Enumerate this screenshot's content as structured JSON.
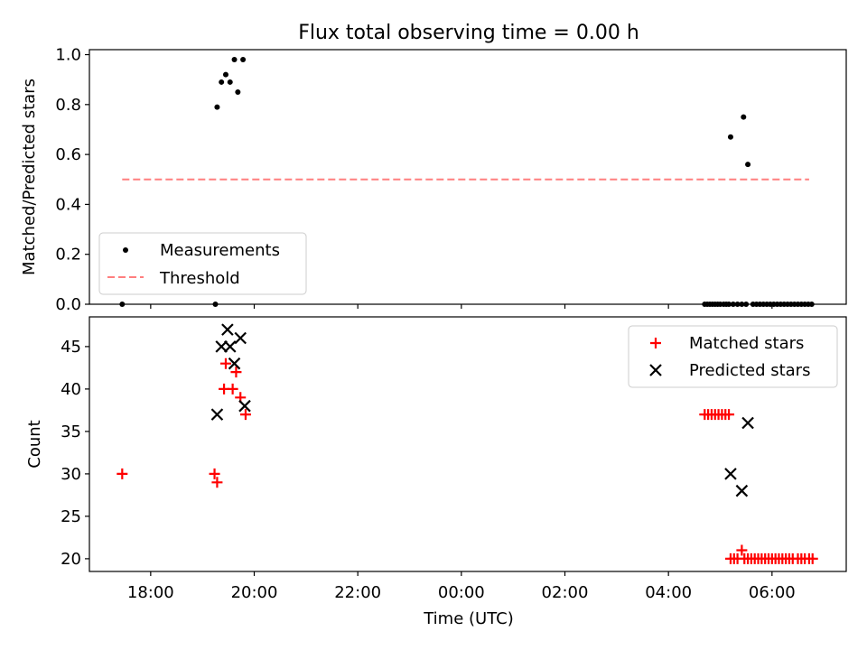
{
  "title": "Flux total observing time = 0.00 h",
  "colors": {
    "matched": "#ff0000",
    "predicted": "#000000",
    "threshold": "#ff7f7f",
    "measurements": "#000000"
  },
  "chart_data": [
    {
      "type": "scatter",
      "ylabel": "Matched/Predicted stars",
      "ylim": [
        0,
        1.02
      ],
      "yticks": [
        "0.0",
        "0.2",
        "0.4",
        "0.6",
        "0.8",
        "1.0"
      ],
      "yticks_values": [
        0.0,
        0.2,
        0.4,
        0.6,
        0.8,
        1.0
      ],
      "legend": {
        "placement": "lower-left",
        "entries": [
          "Measurements",
          "Threshold"
        ]
      },
      "threshold": {
        "name": "Threshold",
        "value": 0.5,
        "x_start": "17:27",
        "x_end": "06:43"
      },
      "series": [
        {
          "name": "Measurements",
          "points": [
            [
              "17:27",
              0.0
            ],
            [
              "19:15",
              0.0
            ],
            [
              "19:17",
              0.79
            ],
            [
              "19:22",
              0.89
            ],
            [
              "19:27",
              0.92
            ],
            [
              "19:32",
              0.89
            ],
            [
              "19:37",
              0.98
            ],
            [
              "19:41",
              0.85
            ],
            [
              "19:47",
              0.98
            ],
            [
              "04:42",
              0.0
            ],
            [
              "04:45",
              0.0
            ],
            [
              "04:48",
              0.0
            ],
            [
              "04:51",
              0.0
            ],
            [
              "04:54",
              0.0
            ],
            [
              "04:57",
              0.0
            ],
            [
              "05:00",
              0.0
            ],
            [
              "05:04",
              0.0
            ],
            [
              "05:07",
              0.0
            ],
            [
              "05:10",
              0.0
            ],
            [
              "05:12",
              0.67
            ],
            [
              "05:15",
              0.0
            ],
            [
              "05:20",
              0.0
            ],
            [
              "05:25",
              0.0
            ],
            [
              "05:27",
              0.75
            ],
            [
              "05:30",
              0.0
            ],
            [
              "05:32",
              0.56
            ],
            [
              "05:38",
              0.0
            ],
            [
              "05:42",
              0.0
            ],
            [
              "05:46",
              0.0
            ],
            [
              "05:50",
              0.0
            ],
            [
              "05:54",
              0.0
            ],
            [
              "05:58",
              0.0
            ],
            [
              "06:02",
              0.0
            ],
            [
              "06:06",
              0.0
            ],
            [
              "06:10",
              0.0
            ],
            [
              "06:14",
              0.0
            ],
            [
              "06:18",
              0.0
            ],
            [
              "06:22",
              0.0
            ],
            [
              "06:26",
              0.0
            ],
            [
              "06:30",
              0.0
            ],
            [
              "06:34",
              0.0
            ],
            [
              "06:38",
              0.0
            ],
            [
              "06:42",
              0.0
            ],
            [
              "06:46",
              0.0
            ]
          ]
        }
      ]
    },
    {
      "type": "scatter",
      "xlabel": "Time (UTC)",
      "ylabel": "Count",
      "ylim": [
        18.5,
        48.5
      ],
      "yticks": [
        "20",
        "25",
        "30",
        "35",
        "40",
        "45"
      ],
      "yticks_values": [
        20,
        25,
        30,
        35,
        40,
        45
      ],
      "xticks": [
        "18:00",
        "20:00",
        "22:00",
        "00:00",
        "02:00",
        "04:00",
        "06:00"
      ],
      "xlim": [
        "16:49",
        "07:26"
      ],
      "legend": {
        "placement": "upper-right",
        "entries": [
          "Matched stars",
          "Predicted stars"
        ]
      },
      "series": [
        {
          "name": "Matched stars",
          "points": [
            [
              "17:27",
              30
            ],
            [
              "19:14",
              30
            ],
            [
              "19:17",
              29
            ],
            [
              "19:25",
              40
            ],
            [
              "19:27",
              43
            ],
            [
              "19:35",
              40
            ],
            [
              "19:39",
              42
            ],
            [
              "19:44",
              39
            ],
            [
              "19:50",
              37
            ],
            [
              "04:42",
              37
            ],
            [
              "04:46",
              37
            ],
            [
              "04:50",
              37
            ],
            [
              "04:54",
              37
            ],
            [
              "04:58",
              37
            ],
            [
              "05:02",
              37
            ],
            [
              "05:06",
              37
            ],
            [
              "05:10",
              37
            ],
            [
              "05:12",
              20
            ],
            [
              "05:16",
              20
            ],
            [
              "05:20",
              20
            ],
            [
              "05:25",
              21
            ],
            [
              "05:28",
              20
            ],
            [
              "05:32",
              20
            ],
            [
              "05:36",
              20
            ],
            [
              "05:40",
              20
            ],
            [
              "05:44",
              20
            ],
            [
              "05:48",
              20
            ],
            [
              "05:52",
              20
            ],
            [
              "05:56",
              20
            ],
            [
              "06:00",
              20
            ],
            [
              "06:04",
              20
            ],
            [
              "06:08",
              20
            ],
            [
              "06:12",
              20
            ],
            [
              "06:16",
              20
            ],
            [
              "06:20",
              20
            ],
            [
              "06:24",
              20
            ],
            [
              "06:30",
              20
            ],
            [
              "06:34",
              20
            ],
            [
              "06:38",
              20
            ],
            [
              "06:43",
              20
            ],
            [
              "06:47",
              20
            ]
          ]
        },
        {
          "name": "Predicted stars",
          "points": [
            [
              "19:17",
              37
            ],
            [
              "19:22",
              45
            ],
            [
              "19:29",
              47
            ],
            [
              "19:32",
              45
            ],
            [
              "19:37",
              43
            ],
            [
              "19:44",
              46
            ],
            [
              "19:49",
              38
            ],
            [
              "05:12",
              30
            ],
            [
              "05:25",
              28
            ],
            [
              "05:32",
              36
            ]
          ]
        }
      ]
    }
  ]
}
